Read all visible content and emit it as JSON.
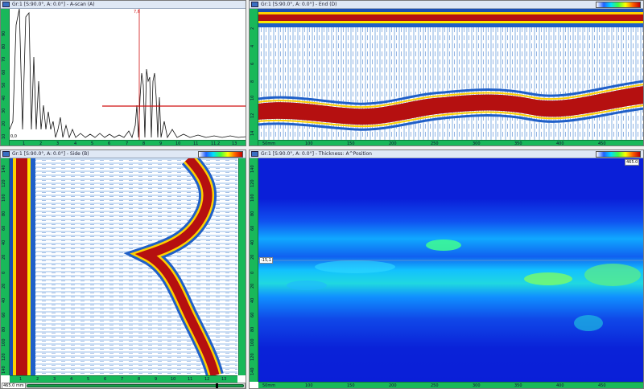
{
  "ascan": {
    "title": "Gr:1 [S:90.0°, A: 0.0°] - A-scan (A)",
    "cursor_label": "7,6",
    "y_ticks": [
      "90",
      "80",
      "70",
      "60",
      "50",
      "40",
      "30",
      "20",
      "10"
    ],
    "x_ticks": [
      "1",
      "2",
      "3",
      "4",
      "5",
      "6",
      "7",
      "8",
      "9",
      "10",
      "11",
      "11.2",
      "13"
    ],
    "corner_label": "0,0"
  },
  "end_view": {
    "title": "Gr:1 [S:90.0°, A: 0.0°] - End (D)",
    "y_ticks": [
      "2",
      "4",
      "6",
      "8",
      "10",
      "12",
      "14"
    ],
    "x_ticks": [
      "50mm",
      "100",
      "150",
      "200",
      "250",
      "300",
      "350",
      "400",
      "450"
    ]
  },
  "side_view": {
    "title": "Gr:1 [S:90.0°, A: 0.0°] - Side (B)",
    "y_ticks": [
      "140",
      "120",
      "100",
      "80",
      "60",
      "40",
      "20",
      "0",
      "20",
      "40",
      "60",
      "80",
      "100",
      "120",
      "140"
    ],
    "x_ticks": [
      "1",
      "2",
      "3",
      "4",
      "5",
      "6",
      "7",
      "8",
      "9",
      "10",
      "11",
      "12",
      "13"
    ],
    "pos_label": "465.0 mm"
  },
  "thickness_view": {
    "title": "Gr:1 [S:90.0°, A: 0.0°] - Thickness: A^Position",
    "y_ticks": [
      "140",
      "120",
      "100",
      "80",
      "60",
      "40",
      "20",
      "0",
      "20",
      "40",
      "60",
      "80",
      "100",
      "120",
      "140"
    ],
    "x_ticks": [
      "50mm",
      "100",
      "150",
      "200",
      "250",
      "300",
      "350",
      "400",
      "450"
    ],
    "cursor_label": "-15,1",
    "corner_label": "465.0"
  },
  "colors": {
    "ruler": "#19b85a",
    "cursor": "#d01010"
  }
}
